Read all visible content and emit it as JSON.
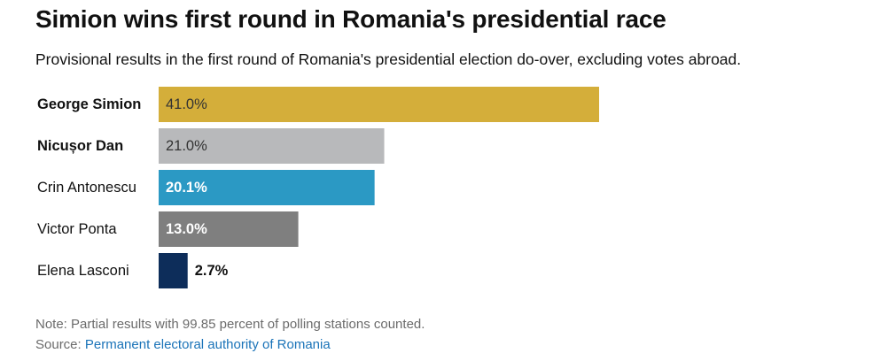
{
  "title": "Simion wins first round in Romania's presidential race",
  "subtitle": "Provisional results in the first round of Romania's presidential election do-over, excluding votes abroad.",
  "note": "Note: Partial results with 99.85 percent of polling stations counted.",
  "source_label": "Source:",
  "source_text": "Permanent electoral authority of Romania",
  "chart_data": {
    "type": "bar",
    "orientation": "horizontal",
    "categories": [
      "George Simion",
      "Nicușor Dan",
      "Crin Antonescu",
      "Victor Ponta",
      "Elena Lasconi"
    ],
    "values": [
      41.0,
      21.0,
      20.1,
      13.0,
      2.7
    ],
    "value_labels": [
      "41.0%",
      "21.0%",
      "20.1%",
      "13.0%",
      "2.7%"
    ],
    "bold_categories": [
      "George Simion",
      "Nicușor Dan"
    ],
    "colors": [
      "#d4ae3a",
      "#b8b9bb",
      "#2b99c4",
      "#7f7f7f",
      "#0d2d5a"
    ],
    "label_colors": [
      "#333333",
      "#333333",
      "#ffffff",
      "#ffffff",
      "#111111"
    ],
    "label_weights": [
      "normal",
      "normal",
      "bold",
      "bold",
      "bold"
    ],
    "xlim": [
      0,
      41.0
    ],
    "grid": false,
    "legend": "none"
  }
}
